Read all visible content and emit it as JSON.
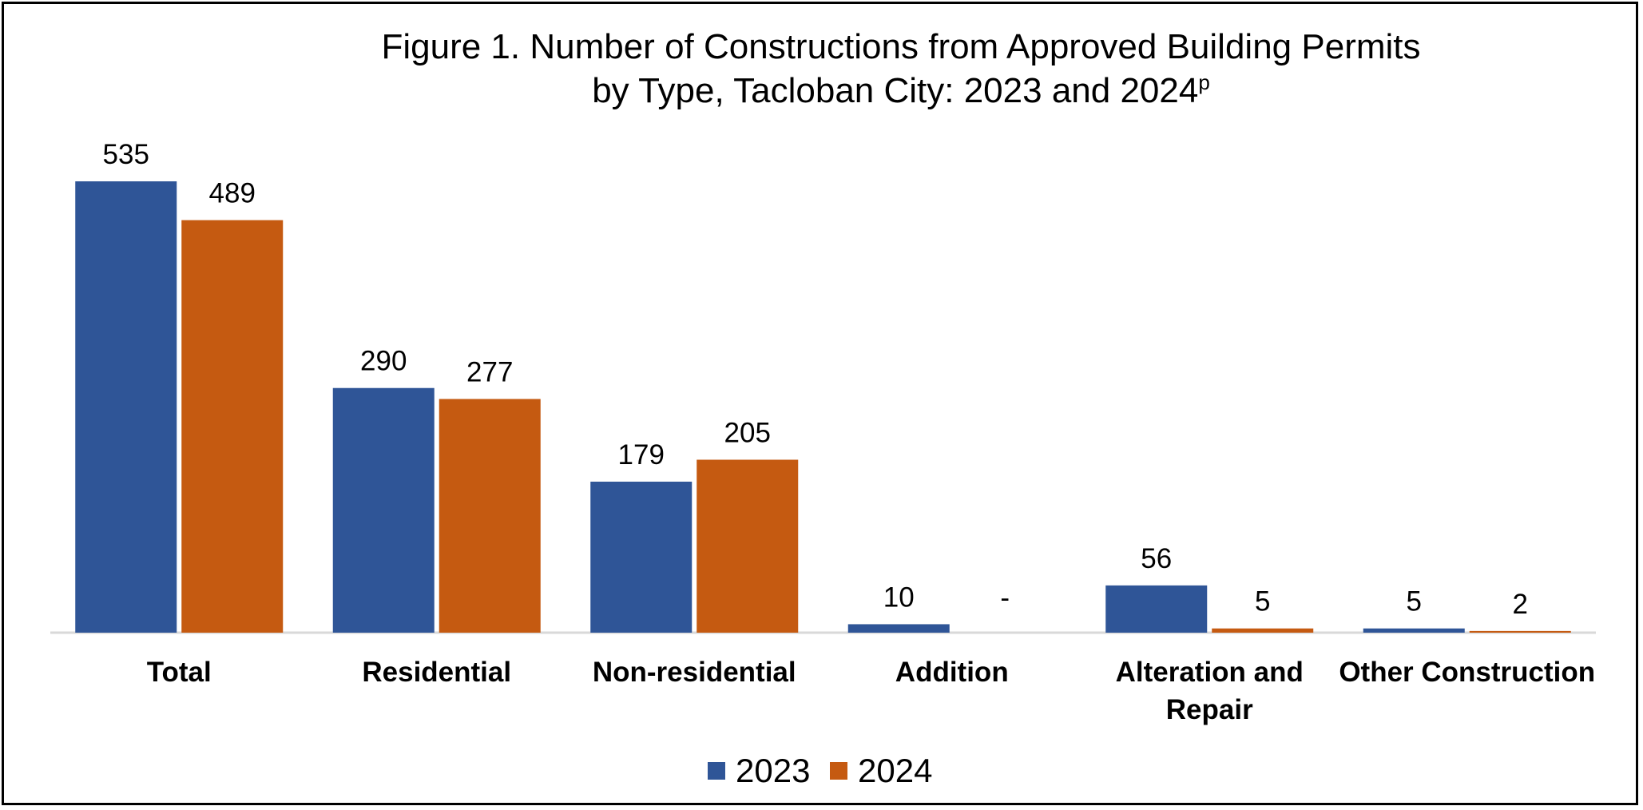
{
  "chart_data": {
    "type": "bar",
    "title": "Figure 1. Number of Constructions from Approved Building Permits",
    "title_line2": "by Type, Tacloban City: 2023 and 2024",
    "title_superscript": "p",
    "categories": [
      "Total",
      "Residential",
      "Non-residential",
      "Addition",
      "Alteration and Repair",
      "Other Construction"
    ],
    "category_lines": [
      [
        "Total"
      ],
      [
        "Residential"
      ],
      [
        "Non-residential"
      ],
      [
        "Addition"
      ],
      [
        "Alteration and",
        "Repair"
      ],
      [
        "Other Construction"
      ]
    ],
    "series": [
      {
        "name": "2023",
        "color": "#2F5597",
        "values": [
          535,
          290,
          179,
          10,
          56,
          5
        ],
        "labels": [
          "535",
          "290",
          "179",
          "10",
          "56",
          "5"
        ]
      },
      {
        "name": "2024",
        "color": "#C55A11",
        "values": [
          489,
          277,
          205,
          0,
          5,
          2
        ],
        "labels": [
          "489",
          "277",
          "205",
          "-",
          "5",
          "2"
        ]
      }
    ],
    "ylim": [
      0,
      535
    ],
    "grid": false,
    "legend_position": "bottom",
    "axis_color": "#D9D9D9"
  }
}
